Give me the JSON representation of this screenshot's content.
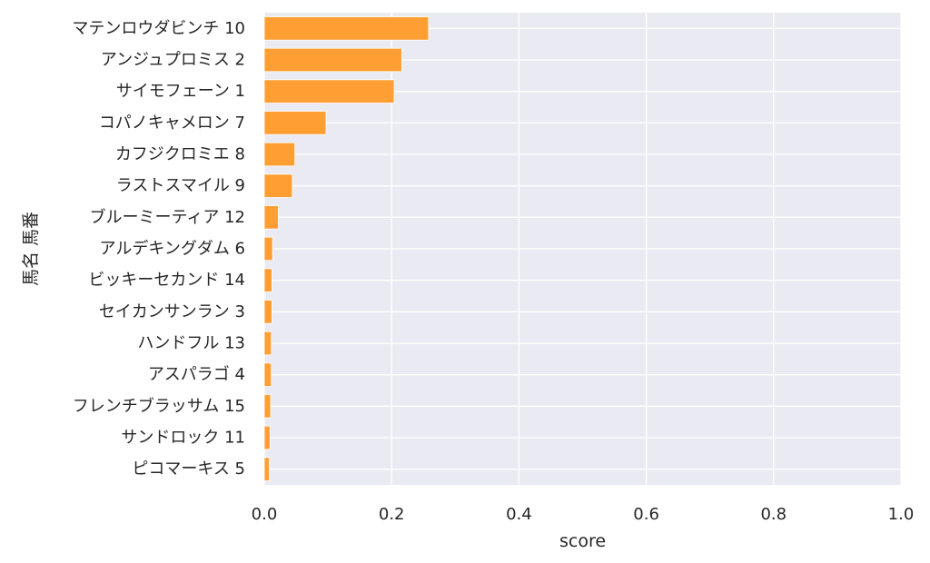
{
  "chart_data": {
    "type": "bar",
    "orientation": "horizontal",
    "title": "",
    "xlabel": "score",
    "ylabel": "馬名 馬番",
    "xlim": [
      0,
      1.0
    ],
    "xticks": [
      "0.0",
      "0.2",
      "0.4",
      "0.6",
      "0.8",
      "1.0"
    ],
    "grid": true,
    "legend": "none",
    "bar_color": "#ff9f33",
    "background_color": "#eaeaf2",
    "categories": [
      "マテンロウダビンチ 10",
      "アンジュプロミス 2",
      "サイモフェーン 1",
      "コパノキャメロン 7",
      "カフジクロミエ 8",
      "ラストスマイル 9",
      "ブルーミーティア 12",
      "アルデキングダム 6",
      "ビッキーセカンド 14",
      "セイカンサンラン 3",
      "ハンドフル 13",
      "アスパラゴ 4",
      "フレンチブラッサム 15",
      "サンドロック 11",
      "ピコマーキス 5"
    ],
    "values": [
      0.258,
      0.216,
      0.204,
      0.097,
      0.048,
      0.044,
      0.022,
      0.013,
      0.012,
      0.012,
      0.011,
      0.011,
      0.01,
      0.009,
      0.008
    ]
  }
}
